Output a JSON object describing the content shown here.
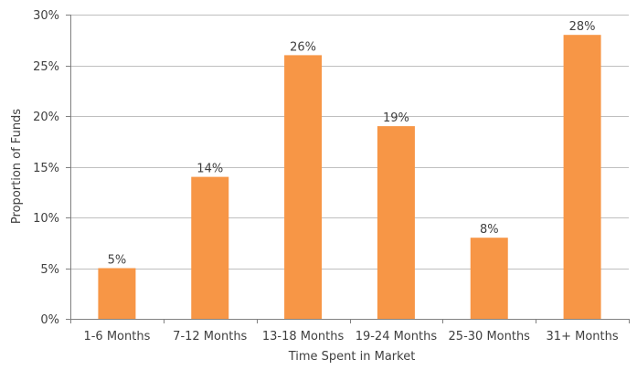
{
  "chart_data": {
    "type": "bar",
    "title": "",
    "xlabel": "Time Spent in Market",
    "ylabel": "Proportion of Funds",
    "categories": [
      "1-6 Months",
      "7-12 Months",
      "13-18 Months",
      "19-24 Months",
      "25-30 Months",
      "31+ Months"
    ],
    "values": [
      5,
      14,
      26,
      19,
      8,
      28
    ],
    "data_labels": [
      "5%",
      "14%",
      "26%",
      "19%",
      "8%",
      "28%"
    ],
    "ylim": [
      0,
      30
    ],
    "yticks": [
      0,
      5,
      10,
      15,
      20,
      25,
      30
    ],
    "ytick_labels": [
      "0%",
      "5%",
      "10%",
      "15%",
      "20%",
      "25%",
      "30%"
    ],
    "grid": true,
    "legend": "none",
    "bar_color": "#F79646",
    "grid_color": "#BFBFBF",
    "axis_color": "#808080",
    "text_color": "#404040"
  }
}
